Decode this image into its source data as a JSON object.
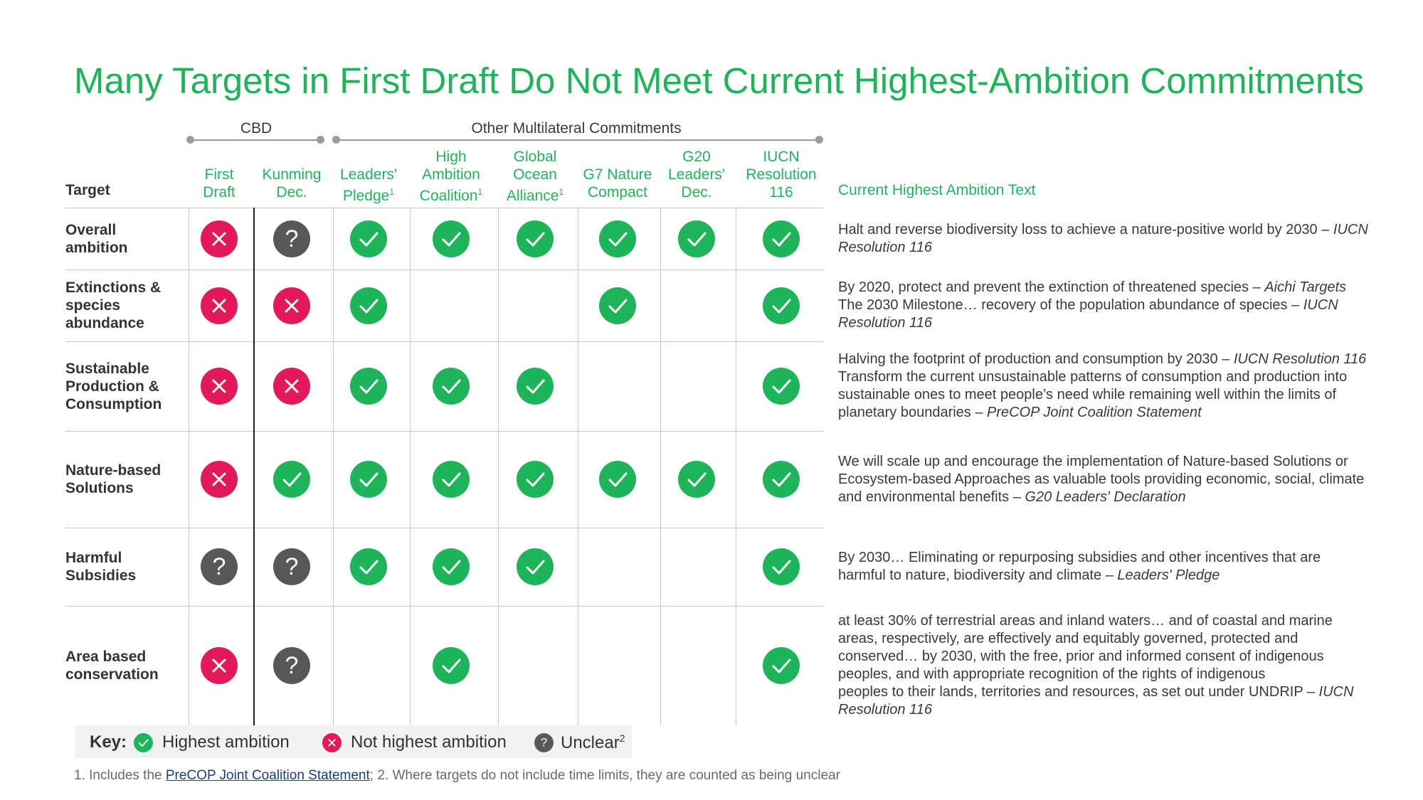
{
  "title": "Many Targets in First Draft Do Not Meet Current Highest-Ambition Commitments",
  "groups": {
    "cbd": "CBD",
    "other": "Other Multilateral Commitments"
  },
  "headers": {
    "target": "Target",
    "text": "Current Highest Ambition Text",
    "columns": [
      {
        "lines": [
          "First",
          "Draft"
        ],
        "sup": ""
      },
      {
        "lines": [
          "Kunming",
          "Dec."
        ],
        "sup": ""
      },
      {
        "lines": [
          "Leaders'",
          "Pledge"
        ],
        "sup": "1"
      },
      {
        "lines": [
          "High",
          "Ambition",
          "Coalition"
        ],
        "sup": "1"
      },
      {
        "lines": [
          "Global",
          "Ocean",
          "Alliance"
        ],
        "sup": "1"
      },
      {
        "lines": [
          "G7 Nature",
          "Compact"
        ],
        "sup": ""
      },
      {
        "lines": [
          "G20",
          "Leaders'",
          "Dec."
        ],
        "sup": ""
      },
      {
        "lines": [
          "IUCN",
          "Resolution",
          "116"
        ],
        "sup": ""
      }
    ]
  },
  "rows": [
    {
      "label": [
        "Overall",
        "ambition"
      ],
      "status": [
        "cross",
        "unclear",
        "check",
        "check",
        "check",
        "check",
        "check",
        "check"
      ],
      "text": [
        [
          "Halt and reverse biodiversity loss to achieve a nature-positive world by 2030 – ",
          "IUCN"
        ],
        [
          "",
          "Resolution 116"
        ]
      ]
    },
    {
      "label": [
        "Extinctions &",
        "species",
        "abundance"
      ],
      "status": [
        "cross",
        "cross",
        "check",
        "",
        "",
        "check",
        "",
        "check"
      ],
      "text": [
        [
          "By 2020, protect and prevent the extinction of threatened species – ",
          "Aichi Targets"
        ],
        [
          "The 2030 Milestone… recovery of the population abundance of species – ",
          "IUCN"
        ],
        [
          "",
          "Resolution 116"
        ]
      ]
    },
    {
      "label": [
        "Sustainable",
        "Production &",
        "Consumption"
      ],
      "status": [
        "cross",
        "cross",
        "check",
        "check",
        "check",
        "",
        "",
        "check"
      ],
      "text": [
        [
          "Halving the footprint of production and consumption by 2030 – ",
          "IUCN Resolution 116"
        ],
        [
          "Transform the current unsustainable patterns of consumption and production into",
          ""
        ],
        [
          "sustainable ones to meet people’s need while remaining well within the limits of",
          ""
        ],
        [
          "planetary boundaries – ",
          "PreCOP Joint Coalition Statement"
        ]
      ]
    },
    {
      "label": [
        "Nature-based",
        "Solutions"
      ],
      "status": [
        "cross",
        "check",
        "check",
        "check",
        "check",
        "check",
        "check",
        "check"
      ],
      "text": [
        [
          "We will scale up and encourage the implementation of Nature-based Solutions or",
          ""
        ],
        [
          "Ecosystem-based Approaches as valuable tools providing economic, social, climate",
          ""
        ],
        [
          "and environmental benefits – ",
          "G20 Leaders' Declaration"
        ]
      ]
    },
    {
      "label": [
        "Harmful",
        "Subsidies"
      ],
      "status": [
        "unclear",
        "unclear",
        "check",
        "check",
        "check",
        "",
        "",
        "check"
      ],
      "text": [
        [
          "By 2030… Eliminating or repurposing subsidies and other incentives that are",
          ""
        ],
        [
          "harmful to nature, biodiversity and climate – ",
          "Leaders' Pledge"
        ]
      ]
    },
    {
      "label": [
        "Area based",
        "conservation"
      ],
      "status": [
        "cross",
        "unclear",
        "",
        "check",
        "",
        "",
        "",
        "check"
      ],
      "text": [
        [
          "at least 30% of terrestrial areas and inland waters… and of coastal and marine",
          ""
        ],
        [
          "areas, respectively, are effectively and equitably governed, protected and",
          ""
        ],
        [
          "conserved… by 2030, with the free, prior and informed consent of indigenous",
          ""
        ],
        [
          "peoples, and with appropriate recognition of the rights of indigenous",
          ""
        ],
        [
          "peoples to their lands, territories and resources, as set out under UNDRIP – ",
          "IUCN"
        ],
        [
          "",
          "Resolution 116"
        ]
      ]
    }
  ],
  "key": {
    "label": "Key:",
    "check": "Highest ambition",
    "cross": "Not highest ambition",
    "unclear": "Unclear",
    "unclear_sup": "2",
    "colors": {
      "check": "#1db45a",
      "cross": "#e3195a",
      "unclear": "#585858",
      "title": "#1db45a"
    }
  },
  "footnote": {
    "prefix": "1. Includes the ",
    "link": "PreCOP Joint Coalition Statement",
    "suffix": "; 2. Where targets do not include time limits, they are counted as being unclear"
  }
}
